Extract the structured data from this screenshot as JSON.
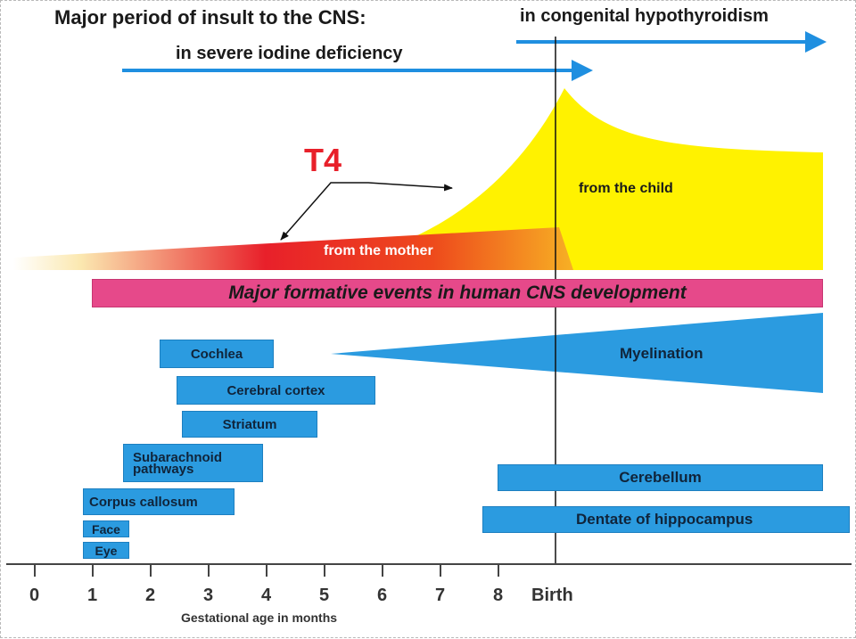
{
  "titles": {
    "insult": "Major period of insult to the CNS:",
    "congenital": "in congenital hypothyroidism",
    "iodine": "in severe iodine deficiency"
  },
  "hormone": {
    "name": "T4",
    "from_child": "from the child",
    "from_mother": "from the mother"
  },
  "banner": "Major formative events in human CNS development",
  "events": {
    "cochlea": "Cochlea",
    "cerebral_cortex": "Cerebral cortex",
    "striatum": "Striatum",
    "subarachnoid_line1": "Subarachnoid",
    "subarachnoid_line2": "pathways",
    "corpus_callosum": "Corpus callosum",
    "face": "Face",
    "eye": "Eye",
    "myelination": "Myelination",
    "cerebellum": "Cerebellum",
    "dentate": "Dentate of hippocampus"
  },
  "axis": {
    "ticks": [
      "0",
      "1",
      "2",
      "3",
      "4",
      "5",
      "6",
      "7",
      "8"
    ],
    "birth": "Birth",
    "label": "Gestational age in months"
  },
  "colors": {
    "arrow": "#1f8fe0",
    "child_area": "#fff200",
    "mother_gradient_start": "#ffffff",
    "mother_gradient_mid": "#e8202a",
    "mother_gradient_end": "#f5a623",
    "banner": "#e6498a",
    "bars": "#2b9be0"
  }
}
